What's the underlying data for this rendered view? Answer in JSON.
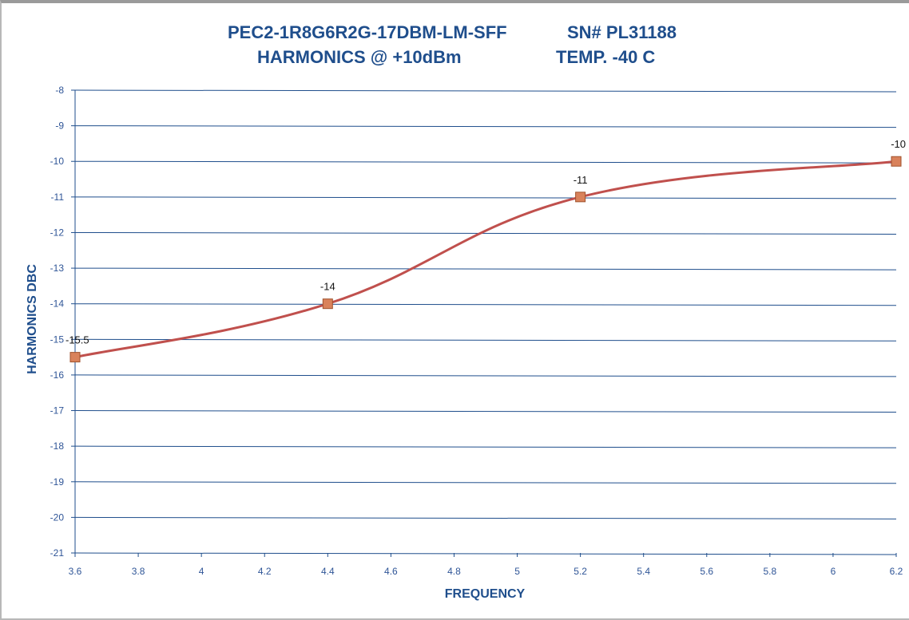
{
  "chart_data": {
    "type": "line",
    "title_line1_left": "PEC2-1R8G6R2G-17DBM-LM-SFF",
    "title_line1_right": "SN# PL31188",
    "title_line2_left": "HARMONICS @ +10dBm",
    "title_line2_right": "TEMP. -40 C",
    "xlabel": "FREQUENCY",
    "ylabel": "HARMONICS DBC",
    "xlim": [
      3.6,
      6.2
    ],
    "ylim": [
      -21,
      -8
    ],
    "x_ticks": [
      "3.6",
      "3.8",
      "4",
      "4.2",
      "4.4",
      "4.6",
      "4.8",
      "5",
      "5.2",
      "5.4",
      "5.6",
      "5.8",
      "6",
      "6.2"
    ],
    "y_ticks": [
      "-8",
      "-9",
      "-10",
      "-11",
      "-12",
      "-13",
      "-14",
      "-15",
      "-16",
      "-17",
      "-18",
      "-19",
      "-20",
      "-21"
    ],
    "grid": "horizontal",
    "legend": "none",
    "smooth": true,
    "series": [
      {
        "x": [
          3.6,
          4.4,
          5.2,
          6.2
        ],
        "y": [
          -15.5,
          -14,
          -11,
          -10
        ],
        "data_labels": [
          "-15.5",
          "-14",
          "-11",
          "-10"
        ]
      }
    ],
    "colors": {
      "line": "#c0504d",
      "marker_fill": "#d9825b",
      "marker_stroke": "#a0522d",
      "grid": "#1f4e8c",
      "text": "#1f4e8c"
    }
  }
}
